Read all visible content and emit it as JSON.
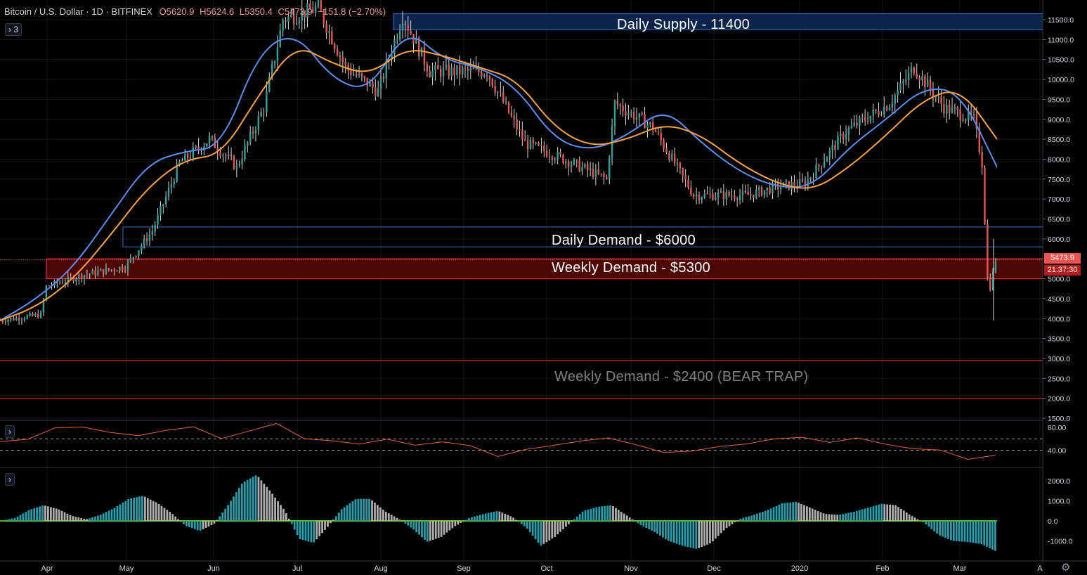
{
  "header": {
    "symbol": "Bitcoin / U.S. Dollar · 1D · BITFINEX",
    "open": "O5620.9",
    "high": "H5624.6",
    "low": "L5350.4",
    "close": "C5473.9",
    "change": "−151.8 (−2.70%)"
  },
  "indicator_toggle": "› 3",
  "pane_toggle": "›",
  "price_tag": "5473.9",
  "countdown_tag": "21:37:30",
  "zones": {
    "daily_supply": "Daily Supply - 11400",
    "daily_demand": "Daily Demand - $6000",
    "weekly_demand": "Weekly Demand - $5300",
    "weekly_demand_low": "Weekly Demand - $2400 (BEAR TRAP)"
  },
  "colors": {
    "background": "#000000",
    "up": "#26a69a",
    "down": "#ef5350",
    "ema_fast": "#5b8def",
    "ema_slow": "#f7a23b",
    "rsi": "#e0632a",
    "supply_zone": "#0f2a55",
    "weekly_zone": "#5a0a0a",
    "hist_teal": "#22a0b0",
    "hist_gray": "#b0b0b0"
  },
  "chart_data": {
    "type": "candlestick",
    "y_axis": {
      "min": 1500,
      "max": 11800,
      "tick_labels": [
        "11500.0",
        "11000.0",
        "10500.0",
        "10000.0",
        "9500.0",
        "9000.0",
        "8500.0",
        "8000.0",
        "7500.0",
        "7000.0",
        "6500.0",
        "6000.0",
        "5500.0",
        "5000.0",
        "4500.0",
        "4000.0",
        "3500.0",
        "3000.0",
        "2500.0",
        "2000.0",
        "1500.0"
      ]
    },
    "x_axis": {
      "tick_labels": [
        "Apr",
        "May",
        "Jun",
        "Jul",
        "Aug",
        "Sep",
        "Oct",
        "Nov",
        "Dec",
        "2020",
        "Feb",
        "Mar",
        "A"
      ]
    },
    "price_path": [
      [
        "2019-03-15",
        3950
      ],
      [
        "2019-03-30",
        4100
      ],
      [
        "2019-04-01",
        4800
      ],
      [
        "2019-04-15",
        5100
      ],
      [
        "2019-04-30",
        5300
      ],
      [
        "2019-05-10",
        6200
      ],
      [
        "2019-05-20",
        7900
      ],
      [
        "2019-05-31",
        8500
      ],
      [
        "2019-06-10",
        7800
      ],
      [
        "2019-06-20",
        9300
      ],
      [
        "2019-06-27",
        11500
      ],
      [
        "2019-07-10",
        11800
      ],
      [
        "2019-07-20",
        10300
      ],
      [
        "2019-08-01",
        9700
      ],
      [
        "2019-08-10",
        11600
      ],
      [
        "2019-08-20",
        10200
      ],
      [
        "2019-09-10",
        10200
      ],
      [
        "2019-09-24",
        8400
      ],
      [
        "2019-10-05",
        8100
      ],
      [
        "2019-10-24",
        7500
      ],
      [
        "2019-10-27",
        9400
      ],
      [
        "2019-11-10",
        8800
      ],
      [
        "2019-11-25",
        7100
      ],
      [
        "2019-12-15",
        7100
      ],
      [
        "2019-12-25",
        7300
      ],
      [
        "2020-01-05",
        7400
      ],
      [
        "2020-01-20",
        8700
      ],
      [
        "2020-02-05",
        9400
      ],
      [
        "2020-02-14",
        10300
      ],
      [
        "2020-02-25",
        9300
      ],
      [
        "2020-03-07",
        9000
      ],
      [
        "2020-03-10",
        7900
      ],
      [
        "2020-03-12",
        5000
      ],
      [
        "2020-03-13",
        4800
      ],
      [
        "2020-03-15",
        5474
      ]
    ],
    "emas": [
      {
        "name": "EMA fast",
        "path": [
          3950,
          4500,
          5300,
          6600,
          7900,
          8200,
          8300,
          10700,
          11200,
          10000,
          9700,
          11300,
          10500,
          10300,
          9800,
          8500,
          8200,
          8600,
          9300,
          8400,
          7700,
          7300,
          7300,
          8300,
          9000,
          9800,
          9700,
          7800
        ]
      },
      {
        "name": "EMA slow",
        "path": [
          3950,
          4300,
          5000,
          6100,
          7300,
          8000,
          8100,
          9600,
          10900,
          10400,
          10100,
          10800,
          10600,
          10300,
          10000,
          8800,
          8300,
          8500,
          8900,
          8600,
          7900,
          7400,
          7200,
          7800,
          8600,
          9500,
          9800,
          8500
        ]
      }
    ],
    "zones": [
      {
        "label": "Daily Supply - 11400",
        "low": 11250,
        "high": 11650
      },
      {
        "label": "Daily Demand - $6000",
        "low": 5800,
        "high": 6300
      },
      {
        "label": "Weekly Demand - $5300",
        "low": 5000,
        "high": 5500
      },
      {
        "label": "Weekly Demand - $2400 (BEAR TRAP)",
        "low": 2000,
        "high": 2950
      }
    ],
    "last_price": 5473.9,
    "rsi": {
      "y_tick_labels": [
        "80.00",
        "40.00"
      ],
      "levels": [
        60,
        40
      ],
      "path": [
        55,
        60,
        78,
        82,
        70,
        66,
        75,
        80,
        62,
        72,
        88,
        60,
        56,
        52,
        58,
        50,
        54,
        48,
        30,
        40,
        50,
        55,
        62,
        50,
        35,
        40,
        45,
        52,
        60,
        62,
        55,
        60,
        52,
        42,
        40,
        25,
        30
      ]
    },
    "macd": {
      "y_tick_labels": [
        "2000.0",
        "1000.0",
        "0.0",
        "-1000.0"
      ],
      "histogram": [
        0,
        150,
        550,
        780,
        600,
        250,
        80,
        300,
        650,
        1100,
        1250,
        900,
        400,
        -250,
        -500,
        -150,
        800,
        1900,
        2300,
        1450,
        500,
        -900,
        -1100,
        -300,
        600,
        1100,
        1100,
        500,
        100,
        -400,
        -1050,
        -800,
        -250,
        150,
        350,
        500,
        200,
        -350,
        -1250,
        -800,
        -150,
        500,
        700,
        780,
        300,
        -200,
        -550,
        -1000,
        -1250,
        -1400,
        -1100,
        -400,
        100,
        300,
        550,
        880,
        950,
        650,
        350,
        300,
        450,
        650,
        850,
        780,
        300,
        -100,
        -700,
        -1000,
        -1050,
        -1150,
        -1500
      ]
    }
  }
}
